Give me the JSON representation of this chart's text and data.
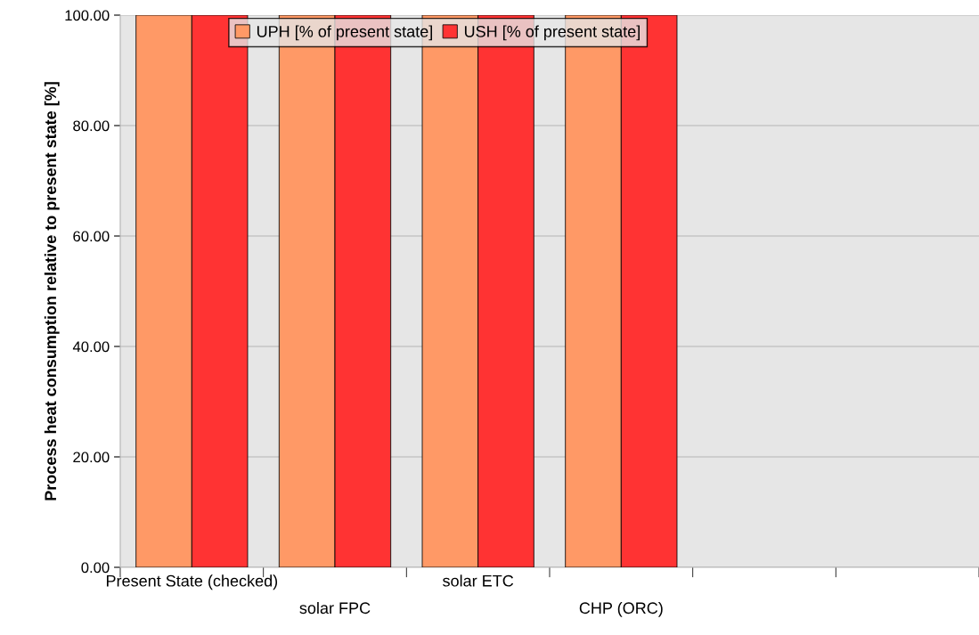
{
  "chart_data": {
    "type": "bar",
    "ylabel": "Process heat consumption relative to present state [%]",
    "categories": [
      "Present State (checked)",
      "solar FPC",
      "solar ETC",
      "CHP (ORC)",
      null,
      null
    ],
    "series": [
      {
        "name": "UPH [% of present state]",
        "color": "#ff9966",
        "values": [
          100,
          100,
          100,
          100,
          null,
          null
        ]
      },
      {
        "name": "USH [% of present state]",
        "color": "#ff3333",
        "values": [
          100,
          100,
          100,
          100,
          null,
          null
        ]
      }
    ],
    "ylim": [
      0,
      100
    ],
    "yticks": [
      {
        "value": 0,
        "label": "0.00"
      },
      {
        "value": 20,
        "label": "20.00"
      },
      {
        "value": 40,
        "label": "40.00"
      },
      {
        "value": 60,
        "label": "60.00"
      },
      {
        "value": 80,
        "label": "80.00"
      },
      {
        "value": 100,
        "label": "100.00"
      }
    ],
    "grid": "y",
    "legend": "top"
  }
}
